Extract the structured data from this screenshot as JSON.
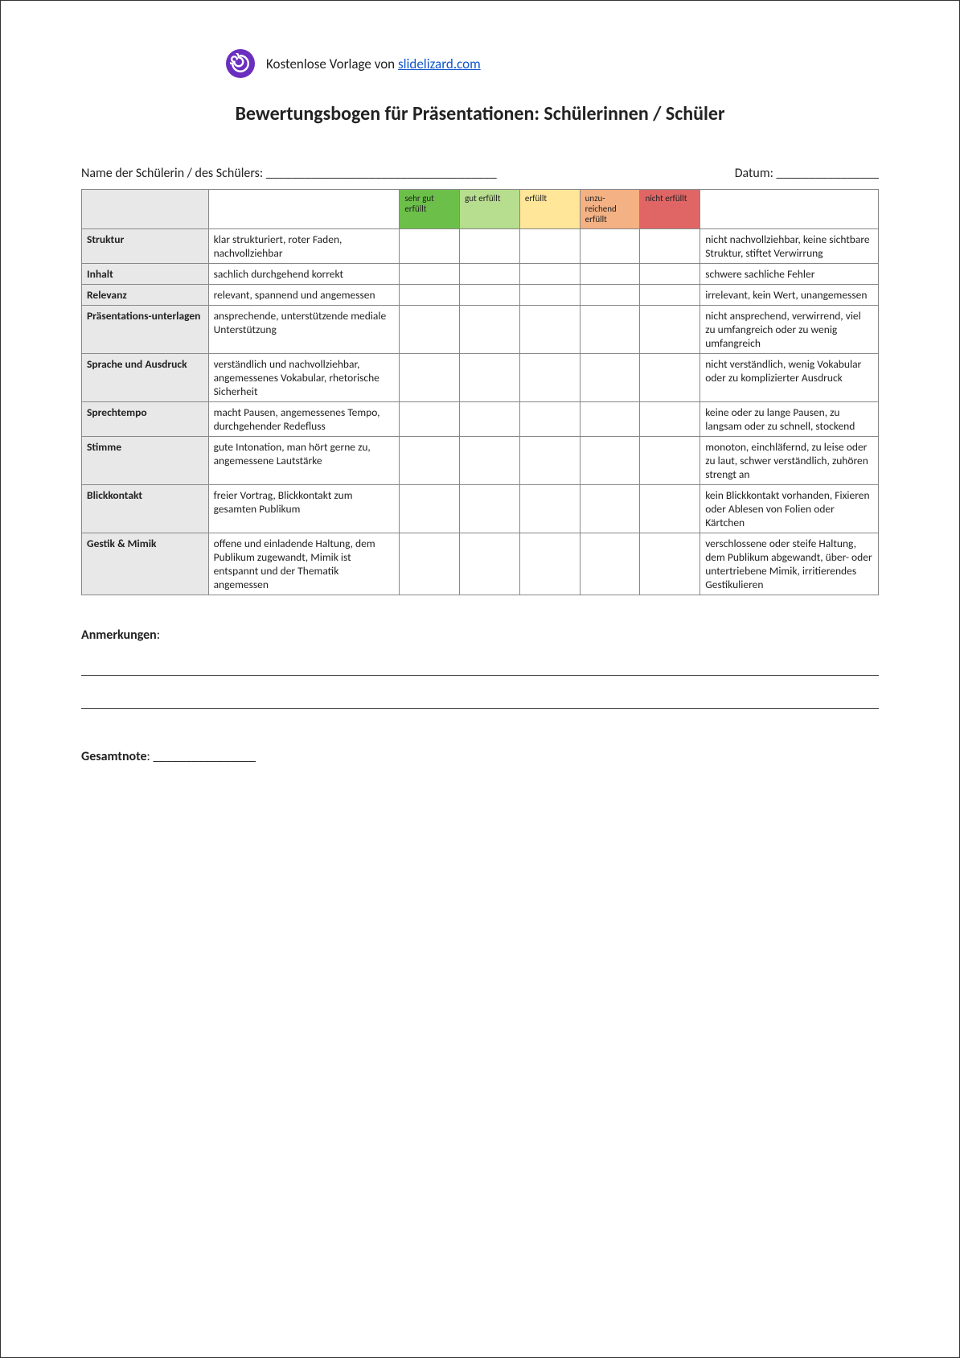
{
  "header": {
    "text_prefix": "Kostenlose Vorlage von ",
    "link_text": "slidelizard.com"
  },
  "title": "Bewertungsbogen für Präsentationen: Schülerinnen / Schüler",
  "form": {
    "name_label": "Name der Schülerin / des Schülers: ",
    "name_underline": "____________________________________",
    "date_label": "Datum: ",
    "date_underline": "________________"
  },
  "ratings": [
    {
      "label": "sehr gut erfüllt",
      "bg": "#6cc04a"
    },
    {
      "label": "gut erfüllt",
      "bg": "#b7dd8f"
    },
    {
      "label": "erfüllt",
      "bg": "#ffe699"
    },
    {
      "label": "unzu-reichend erfüllt",
      "bg": "#f4b183"
    },
    {
      "label": "nicht erfüllt",
      "bg": "#e06666"
    }
  ],
  "rows": [
    {
      "cat": "Struktur",
      "pos": "klar strukturiert, roter Faden, nachvollziehbar",
      "neg": "nicht nachvollziehbar, keine sichtbare Struktur, stiftet Verwirrung"
    },
    {
      "cat": "Inhalt",
      "pos": "sachlich durchgehend korrekt",
      "neg": "schwere sachliche Fehler"
    },
    {
      "cat": "Relevanz",
      "pos": "relevant, spannend und angemessen",
      "neg": "irrelevant, kein Wert, unangemessen"
    },
    {
      "cat": "Präsentations-unterlagen",
      "pos": "ansprechende, unterstützende mediale Unterstützung",
      "neg": "nicht ansprechend, verwirrend, viel zu umfangreich oder zu wenig umfangreich"
    },
    {
      "cat": "Sprache und Ausdruck",
      "pos": "verständlich und nachvollziehbar, angemessenes Vokabular, rhetorische Sicherheit",
      "neg": "nicht verständlich, wenig Vokabular oder zu komplizierter Ausdruck"
    },
    {
      "cat": "Sprechtempo",
      "pos": "macht Pausen, angemessenes Tempo, durchgehender Redefluss",
      "neg": "keine oder zu lange Pausen, zu langsam oder zu schnell, stockend"
    },
    {
      "cat": "Stimme",
      "pos": "gute Intonation, man hört gerne zu, angemessene Lautstärke",
      "neg": "monoton, einchläfernd, zu leise oder zu laut, schwer verständlich, zuhören strengt an"
    },
    {
      "cat": "Blickkontakt",
      "pos": "freier Vortrag, Blickkontakt zum gesamten Publikum",
      "neg": "kein Blickkontakt vorhanden, Fixieren oder Ablesen von Folien oder Kärtchen"
    },
    {
      "cat": "Gestik & Mimik",
      "pos": "offene und einladende Haltung, dem Publikum zugewandt, Mimik ist entspannt und der Thematik angemessen",
      "neg": "verschlossene oder steife Haltung, dem Publikum abgewandt, über- oder untertriebene Mimik, irritierendes Gestikulieren"
    }
  ],
  "notes": {
    "label": "Anmerkungen",
    "colon": ":"
  },
  "grade": {
    "label": "Gesamtnote",
    "colon": ": ",
    "underline": "________________"
  }
}
